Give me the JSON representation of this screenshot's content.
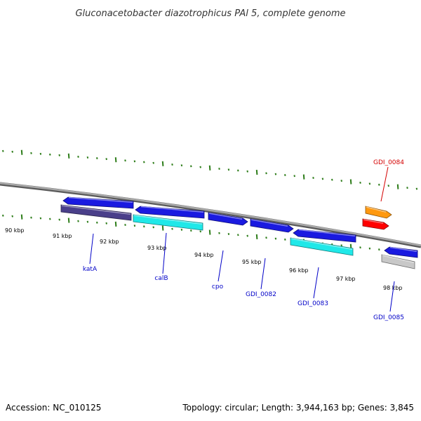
{
  "title": "Gluconacetobacter diazotrophicus PAl 5, complete genome",
  "footer": {
    "accession": "Accession: NC_010125",
    "summary": "Topology: circular; Length: 3,944,163 bp; Genes: 3,845"
  },
  "colors": {
    "backbone": "#8a8a8a",
    "tick": "#2e7d1a",
    "label_blue": "#0000c8",
    "label_red": "#d40000",
    "blue": "#1a1ae0",
    "navy": "#4a3f8a",
    "cyan": "#20e8e8",
    "orange": "#ff9910",
    "red": "#ff0000",
    "gray": "#c8c8c8"
  },
  "kbp_labels": [
    "90 kbp",
    "91 kbp",
    "92 kbp",
    "93 kbp",
    "94 kbp",
    "95 kbp",
    "96 kbp",
    "97 kbp",
    "98 kbp"
  ],
  "genes": [
    {
      "id": "g1",
      "color": "blue",
      "direction": "left"
    },
    {
      "id": "g2",
      "color": "navy",
      "direction": "none",
      "label": "katA",
      "label_color": "label_blue"
    },
    {
      "id": "g3",
      "color": "blue",
      "direction": "left"
    },
    {
      "id": "g4",
      "color": "cyan",
      "direction": "none",
      "label": "calB",
      "label_color": "label_blue"
    },
    {
      "id": "g5",
      "color": "blue",
      "direction": "right",
      "label": "cpo",
      "label_color": "label_blue"
    },
    {
      "id": "g6",
      "color": "blue",
      "direction": "right",
      "label": "GDI_0082",
      "label_color": "label_blue"
    },
    {
      "id": "g7",
      "color": "blue",
      "direction": "left"
    },
    {
      "id": "g8",
      "color": "cyan",
      "direction": "none",
      "label": "GDI_0083",
      "label_color": "label_blue"
    },
    {
      "id": "g9",
      "color": "orange",
      "direction": "right",
      "label": "GDI_0084",
      "label_color": "label_red"
    },
    {
      "id": "g10",
      "color": "red",
      "direction": "right"
    },
    {
      "id": "g11",
      "color": "blue",
      "direction": "left"
    },
    {
      "id": "g12",
      "color": "gray",
      "direction": "none",
      "label": "GDI_0085",
      "label_color": "label_blue"
    }
  ]
}
